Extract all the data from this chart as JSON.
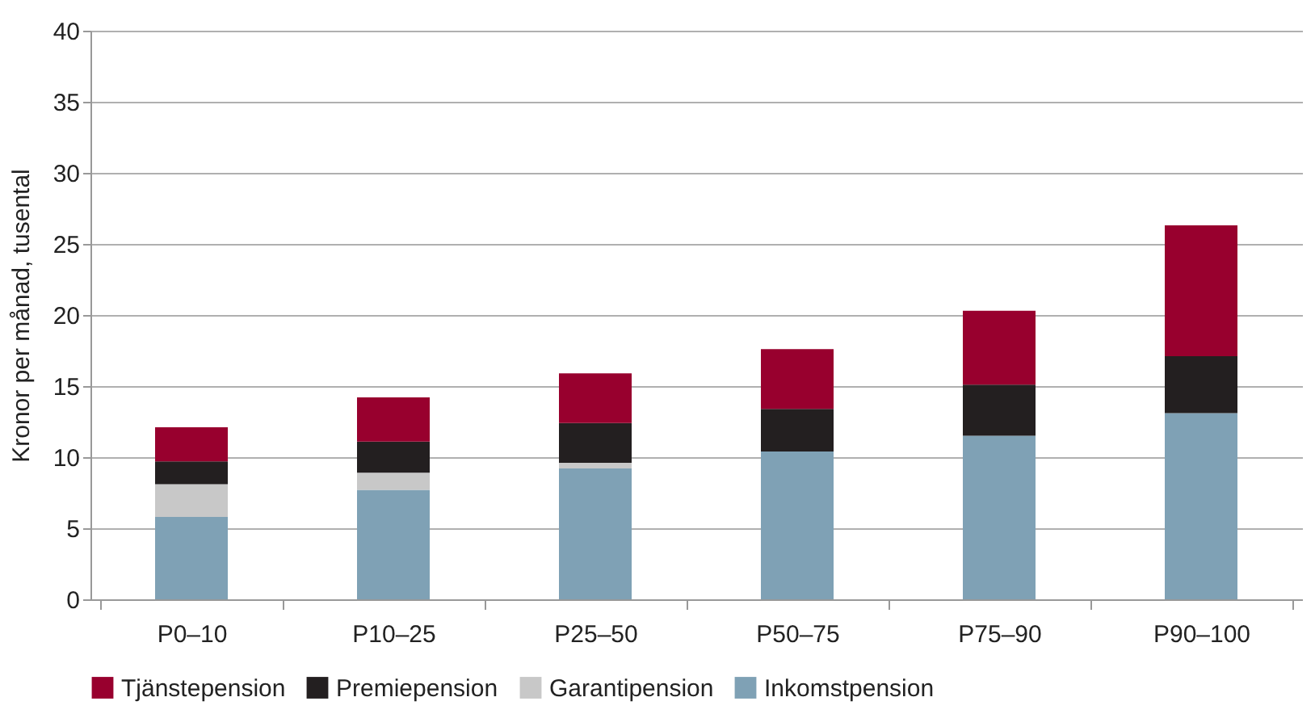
{
  "chart_data": {
    "type": "bar",
    "stacked": true,
    "ylabel": "Kronor per månad, tusental",
    "categories": [
      "P0–10",
      "P10–25",
      "P25–50",
      "P50–75",
      "P75–90",
      "P90–100"
    ],
    "series": [
      {
        "name": "Inkomstpension",
        "color": "#7fa1b5",
        "values": [
          5.8,
          7.7,
          9.2,
          10.4,
          11.5,
          13.1
        ]
      },
      {
        "name": "Garantipension",
        "color": "#c8c8c8",
        "values": [
          2.3,
          1.2,
          0.4,
          null,
          null,
          null
        ]
      },
      {
        "name": "Premiepension",
        "color": "#231f20",
        "values": [
          1.6,
          2.2,
          2.8,
          3.0,
          3.6,
          4.0
        ]
      },
      {
        "name": "Tjänstepension",
        "color": "#98002e",
        "values": [
          2.4,
          3.1,
          3.5,
          4.2,
          5.2,
          9.2
        ]
      }
    ],
    "ylim": [
      0,
      40
    ],
    "yticks": [
      0,
      5,
      10,
      15,
      20,
      25,
      30,
      35,
      40
    ],
    "grid": "y",
    "legend": "bottom"
  }
}
